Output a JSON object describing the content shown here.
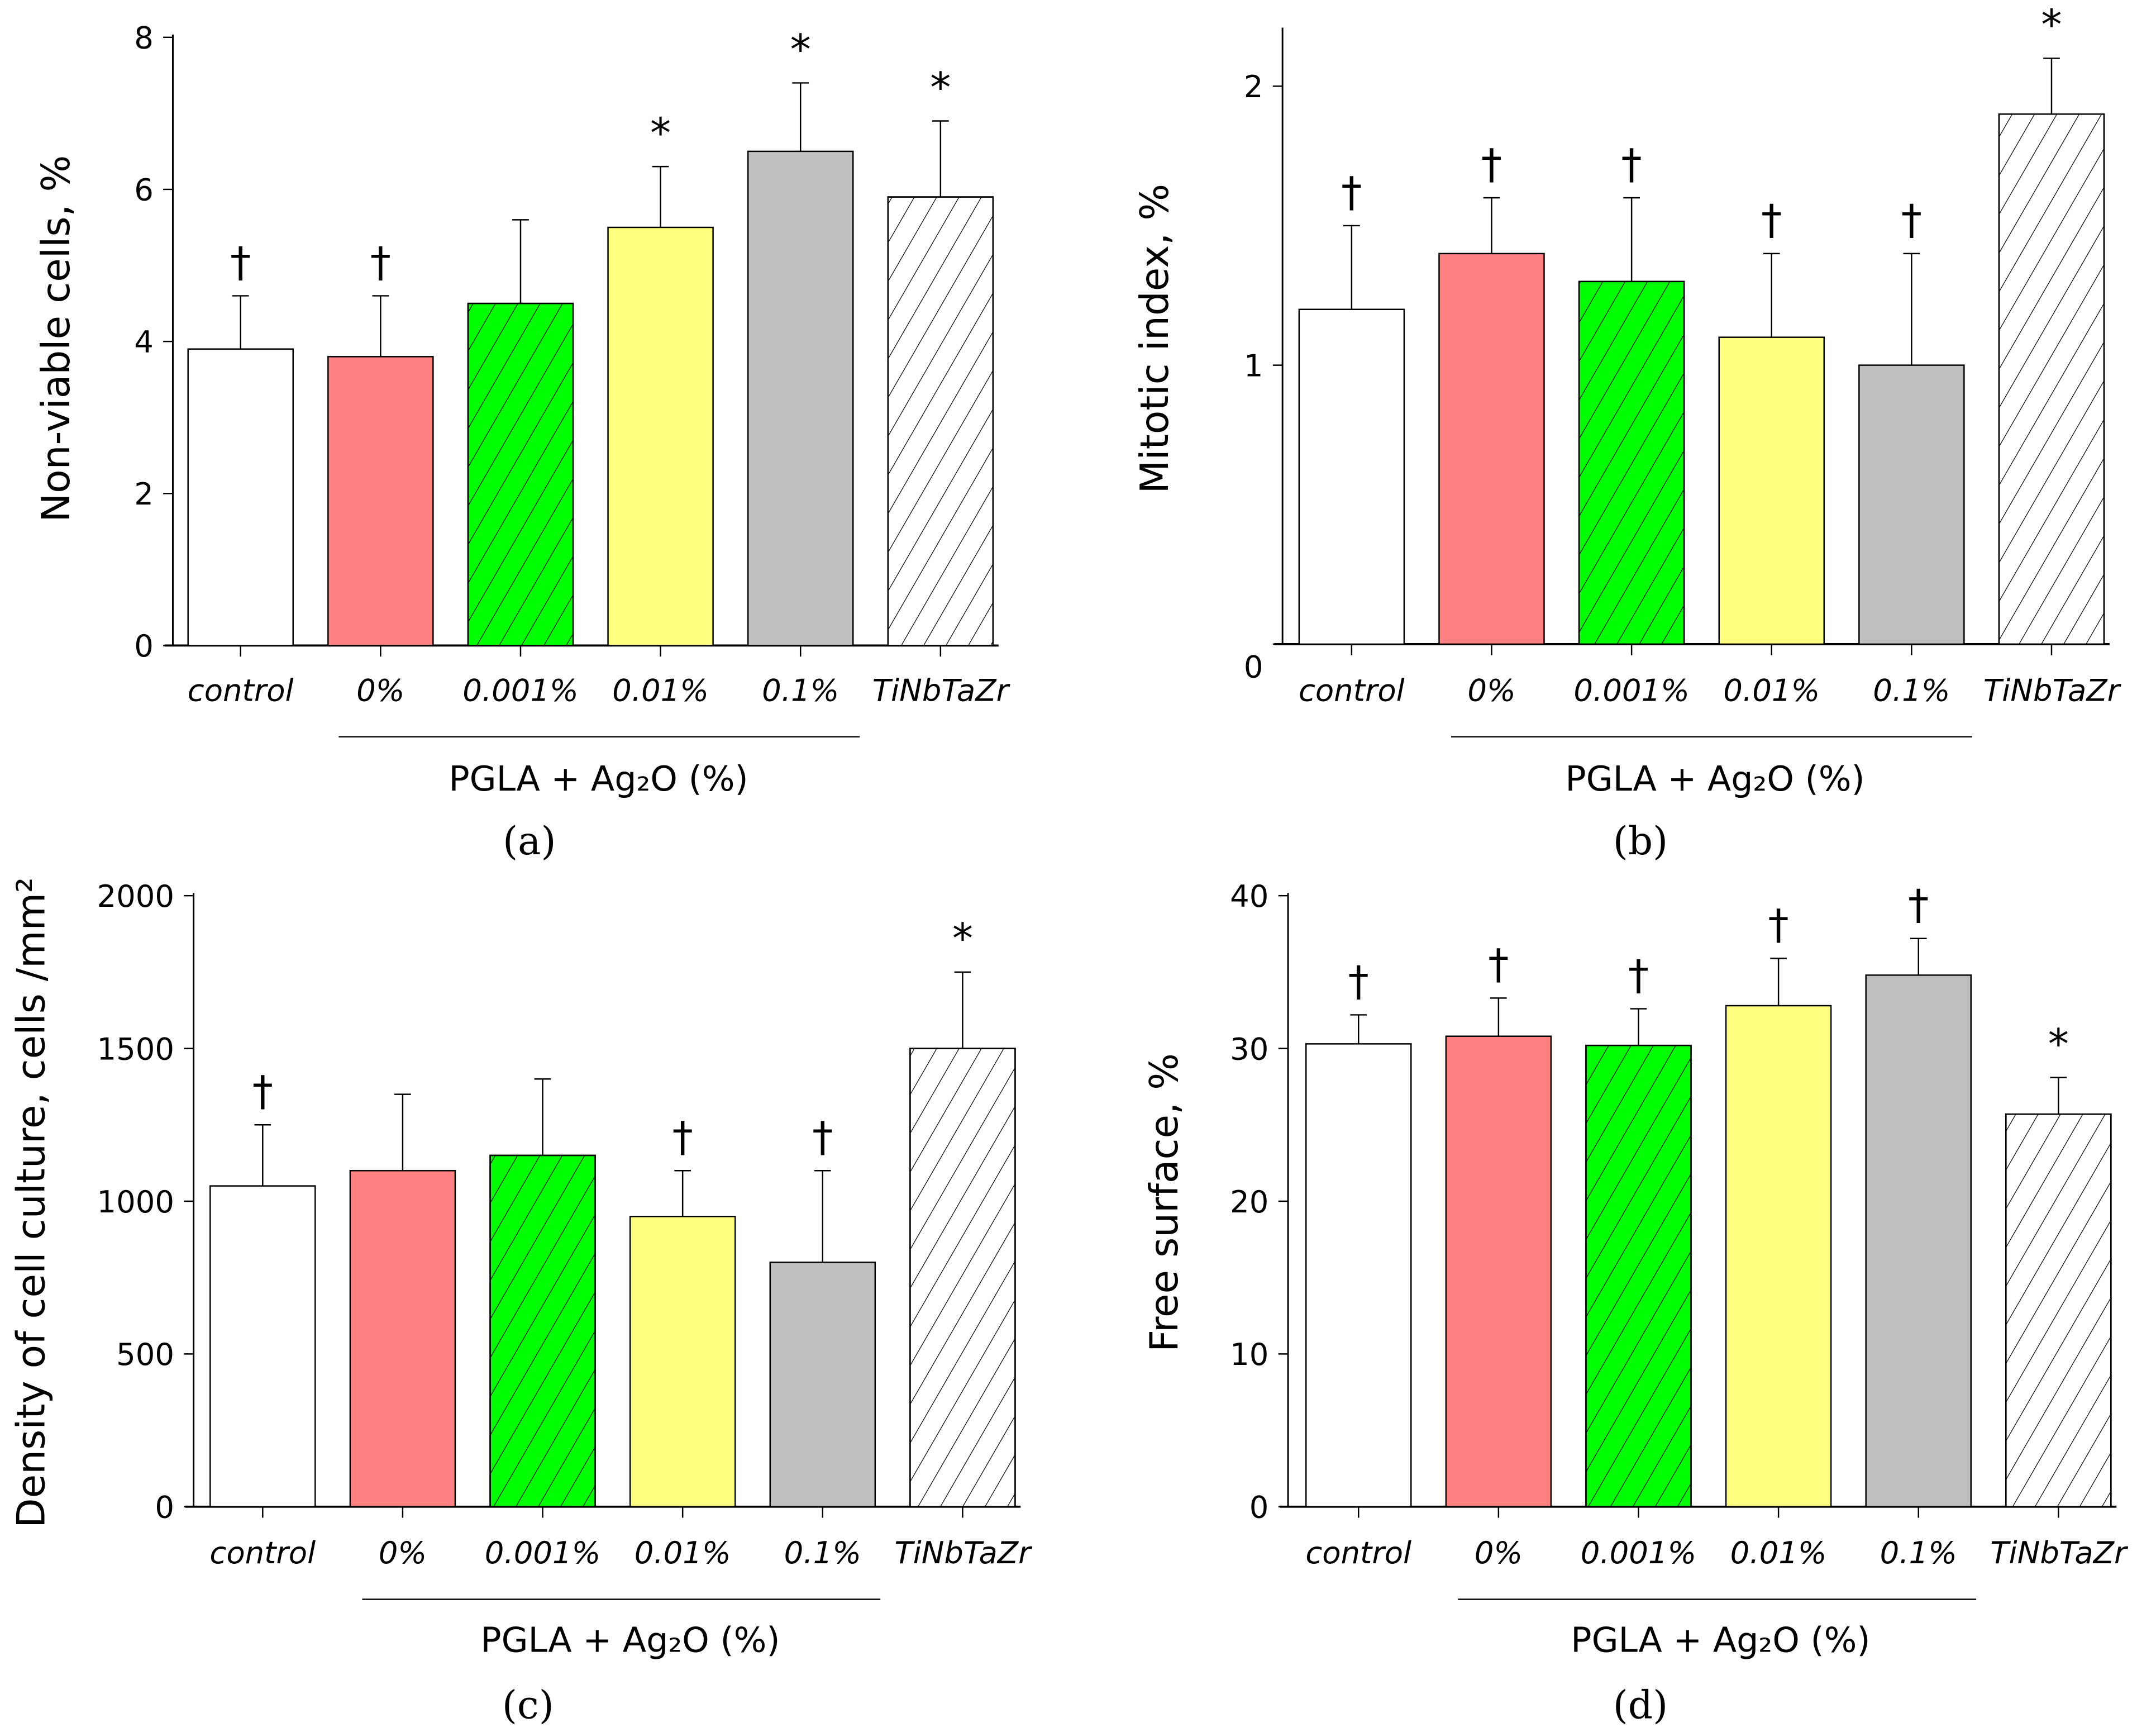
{
  "colors": {
    "control": "#ffffff",
    "0%": "#ff8080",
    "0.001%": "#00ff00",
    "0.01%": "#ffff80",
    "0.1%": "#c0c0c0",
    "TiNbTaZr": "#ffffff"
  },
  "chart_data": [
    {
      "type": "bar",
      "panel_label": "(a)",
      "ylabel": "Non-viable cells, %",
      "ylim": [
        0,
        8
      ],
      "yticks": [
        "0",
        "2",
        "4",
        "6",
        "8"
      ],
      "categories": [
        "control",
        "0%",
        "0.001%",
        "0.01%",
        "0.1%",
        "TiNbTaZr"
      ],
      "values": [
        3.9,
        3.8,
        4.5,
        5.5,
        6.5,
        5.9
      ],
      "errors": [
        0.7,
        0.8,
        1.1,
        0.8,
        0.9,
        1.0
      ],
      "markers": [
        "†",
        "†",
        "",
        "*",
        "*",
        "*"
      ],
      "fills": [
        "#ffffff",
        "#ff8080",
        "#00ff00",
        "#ffff80",
        "#c0c0c0",
        "#ffffff"
      ],
      "hatched": [
        false,
        false,
        true,
        false,
        false,
        true
      ],
      "group_label": "PGLA + Ag₂O  (%)"
    },
    {
      "type": "bar",
      "panel_label": "(b)",
      "ylabel": "Mitotic index, %",
      "ylim": [
        0,
        2.2
      ],
      "yticks": [
        "0",
        "1",
        "2"
      ],
      "categories": [
        "control",
        "0%",
        "0.001%",
        "0.01%",
        "0.1%",
        "TiNbTaZr"
      ],
      "values": [
        1.2,
        1.4,
        1.3,
        1.1,
        1.0,
        1.9
      ],
      "errors": [
        0.3,
        0.2,
        0.3,
        0.3,
        0.4,
        0.2
      ],
      "markers": [
        "†",
        "†",
        "†",
        "†",
        "†",
        "*"
      ],
      "fills": [
        "#ffffff",
        "#ff8080",
        "#00ff00",
        "#ffff80",
        "#c0c0c0",
        "#ffffff"
      ],
      "hatched": [
        false,
        false,
        true,
        false,
        false,
        true
      ],
      "group_label": "PGLA + Ag₂O  (%)"
    },
    {
      "type": "bar",
      "panel_label": "(c)",
      "ylabel": "Density of cell culture, cells /mm²",
      "ylim": [
        0,
        2000
      ],
      "yticks": [
        "0",
        "500",
        "1000",
        "1500",
        "2000"
      ],
      "categories": [
        "control",
        "0%",
        "0.001%",
        "0.01%",
        "0.1%",
        "TiNbTaZr"
      ],
      "values": [
        1050,
        1100,
        1150,
        950,
        800,
        1500
      ],
      "errors": [
        200,
        250,
        250,
        150,
        300,
        250
      ],
      "markers": [
        "†",
        "",
        "",
        "†",
        "†",
        "*"
      ],
      "fills": [
        "#ffffff",
        "#ff8080",
        "#00ff00",
        "#ffff80",
        "#c0c0c0",
        "#ffffff"
      ],
      "hatched": [
        false,
        false,
        true,
        false,
        false,
        true
      ],
      "group_label": "PGLA + Ag₂O  (%)"
    },
    {
      "type": "bar",
      "panel_label": "(d)",
      "ylabel": "Free surface, %",
      "ylim": [
        0,
        40
      ],
      "yticks": [
        "0",
        "10",
        "20",
        "30",
        "40"
      ],
      "categories": [
        "control",
        "0%",
        "0.001%",
        "0.01%",
        "0.1%",
        "TiNbTaZr"
      ],
      "values": [
        30.3,
        30.8,
        30.2,
        32.8,
        34.8,
        25.7
      ],
      "errors": [
        1.9,
        2.5,
        2.4,
        3.1,
        2.4,
        2.4
      ],
      "markers": [
        "†",
        "†",
        "†",
        "†",
        "†",
        "*"
      ],
      "fills": [
        "#ffffff",
        "#ff8080",
        "#00ff00",
        "#ffff80",
        "#c0c0c0",
        "#ffffff"
      ],
      "hatched": [
        false,
        false,
        true,
        false,
        false,
        true
      ],
      "group_label": "PGLA + Ag₂O  (%)"
    }
  ]
}
